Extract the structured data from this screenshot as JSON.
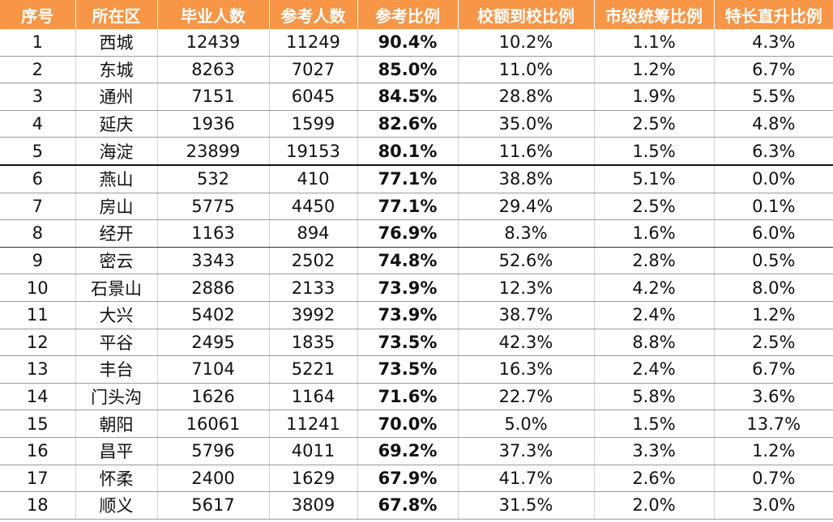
{
  "table": {
    "headers": [
      "序号",
      "所在区",
      "毕业人数",
      "参考人数",
      "参考比例",
      "校额到校比例",
      "市级统筹比例",
      "特长直升比例"
    ],
    "rows": [
      [
        "1",
        "西城",
        "12439",
        "11249",
        "90.4%",
        "10.2%",
        "1.1%",
        "4.3%"
      ],
      [
        "2",
        "东城",
        "8263",
        "7027",
        "85.0%",
        "11.0%",
        "1.2%",
        "6.7%"
      ],
      [
        "3",
        "通州",
        "7151",
        "6045",
        "84.5%",
        "28.8%",
        "1.9%",
        "5.5%"
      ],
      [
        "4",
        "延庆",
        "1936",
        "1599",
        "82.6%",
        "35.0%",
        "2.5%",
        "4.8%"
      ],
      [
        "5",
        "海淀",
        "23899",
        "19153",
        "80.1%",
        "11.6%",
        "1.5%",
        "6.3%"
      ],
      [
        "6",
        "燕山",
        "532",
        "410",
        "77.1%",
        "38.8%",
        "5.1%",
        "0.0%"
      ],
      [
        "7",
        "房山",
        "5775",
        "4450",
        "77.1%",
        "29.4%",
        "2.5%",
        "0.1%"
      ],
      [
        "8",
        "经开",
        "1163",
        "894",
        "76.9%",
        "8.3%",
        "1.6%",
        "6.0%"
      ],
      [
        "9",
        "密云",
        "3343",
        "2502",
        "74.8%",
        "52.6%",
        "2.8%",
        "0.5%"
      ],
      [
        "10",
        "石景山",
        "2886",
        "2133",
        "73.9%",
        "12.3%",
        "4.2%",
        "8.0%"
      ],
      [
        "11",
        "大兴",
        "5402",
        "3992",
        "73.9%",
        "38.7%",
        "2.4%",
        "1.2%"
      ],
      [
        "12",
        "平谷",
        "2495",
        "1835",
        "73.5%",
        "42.3%",
        "8.8%",
        "2.5%"
      ],
      [
        "13",
        "丰台",
        "7104",
        "5221",
        "73.5%",
        "16.3%",
        "2.4%",
        "6.7%"
      ],
      [
        "14",
        "门头沟",
        "1626",
        "1164",
        "71.6%",
        "22.7%",
        "5.8%",
        "3.6%"
      ],
      [
        "15",
        "朝阳",
        "16061",
        "11241",
        "70.0%",
        "5.0%",
        "1.5%",
        "13.7%"
      ],
      [
        "16",
        "昌平",
        "5796",
        "4011",
        "69.2%",
        "37.3%",
        "3.3%",
        "1.2%"
      ],
      [
        "17",
        "怀柔",
        "2400",
        "1629",
        "67.9%",
        "41.7%",
        "2.6%",
        "0.7%"
      ],
      [
        "18",
        "顺义",
        "5617",
        "3809",
        "67.8%",
        "31.5%",
        "2.0%",
        "3.0%"
      ]
    ]
  },
  "colors": {
    "header_bg": "#f79646",
    "header_text": "#ffffff"
  }
}
